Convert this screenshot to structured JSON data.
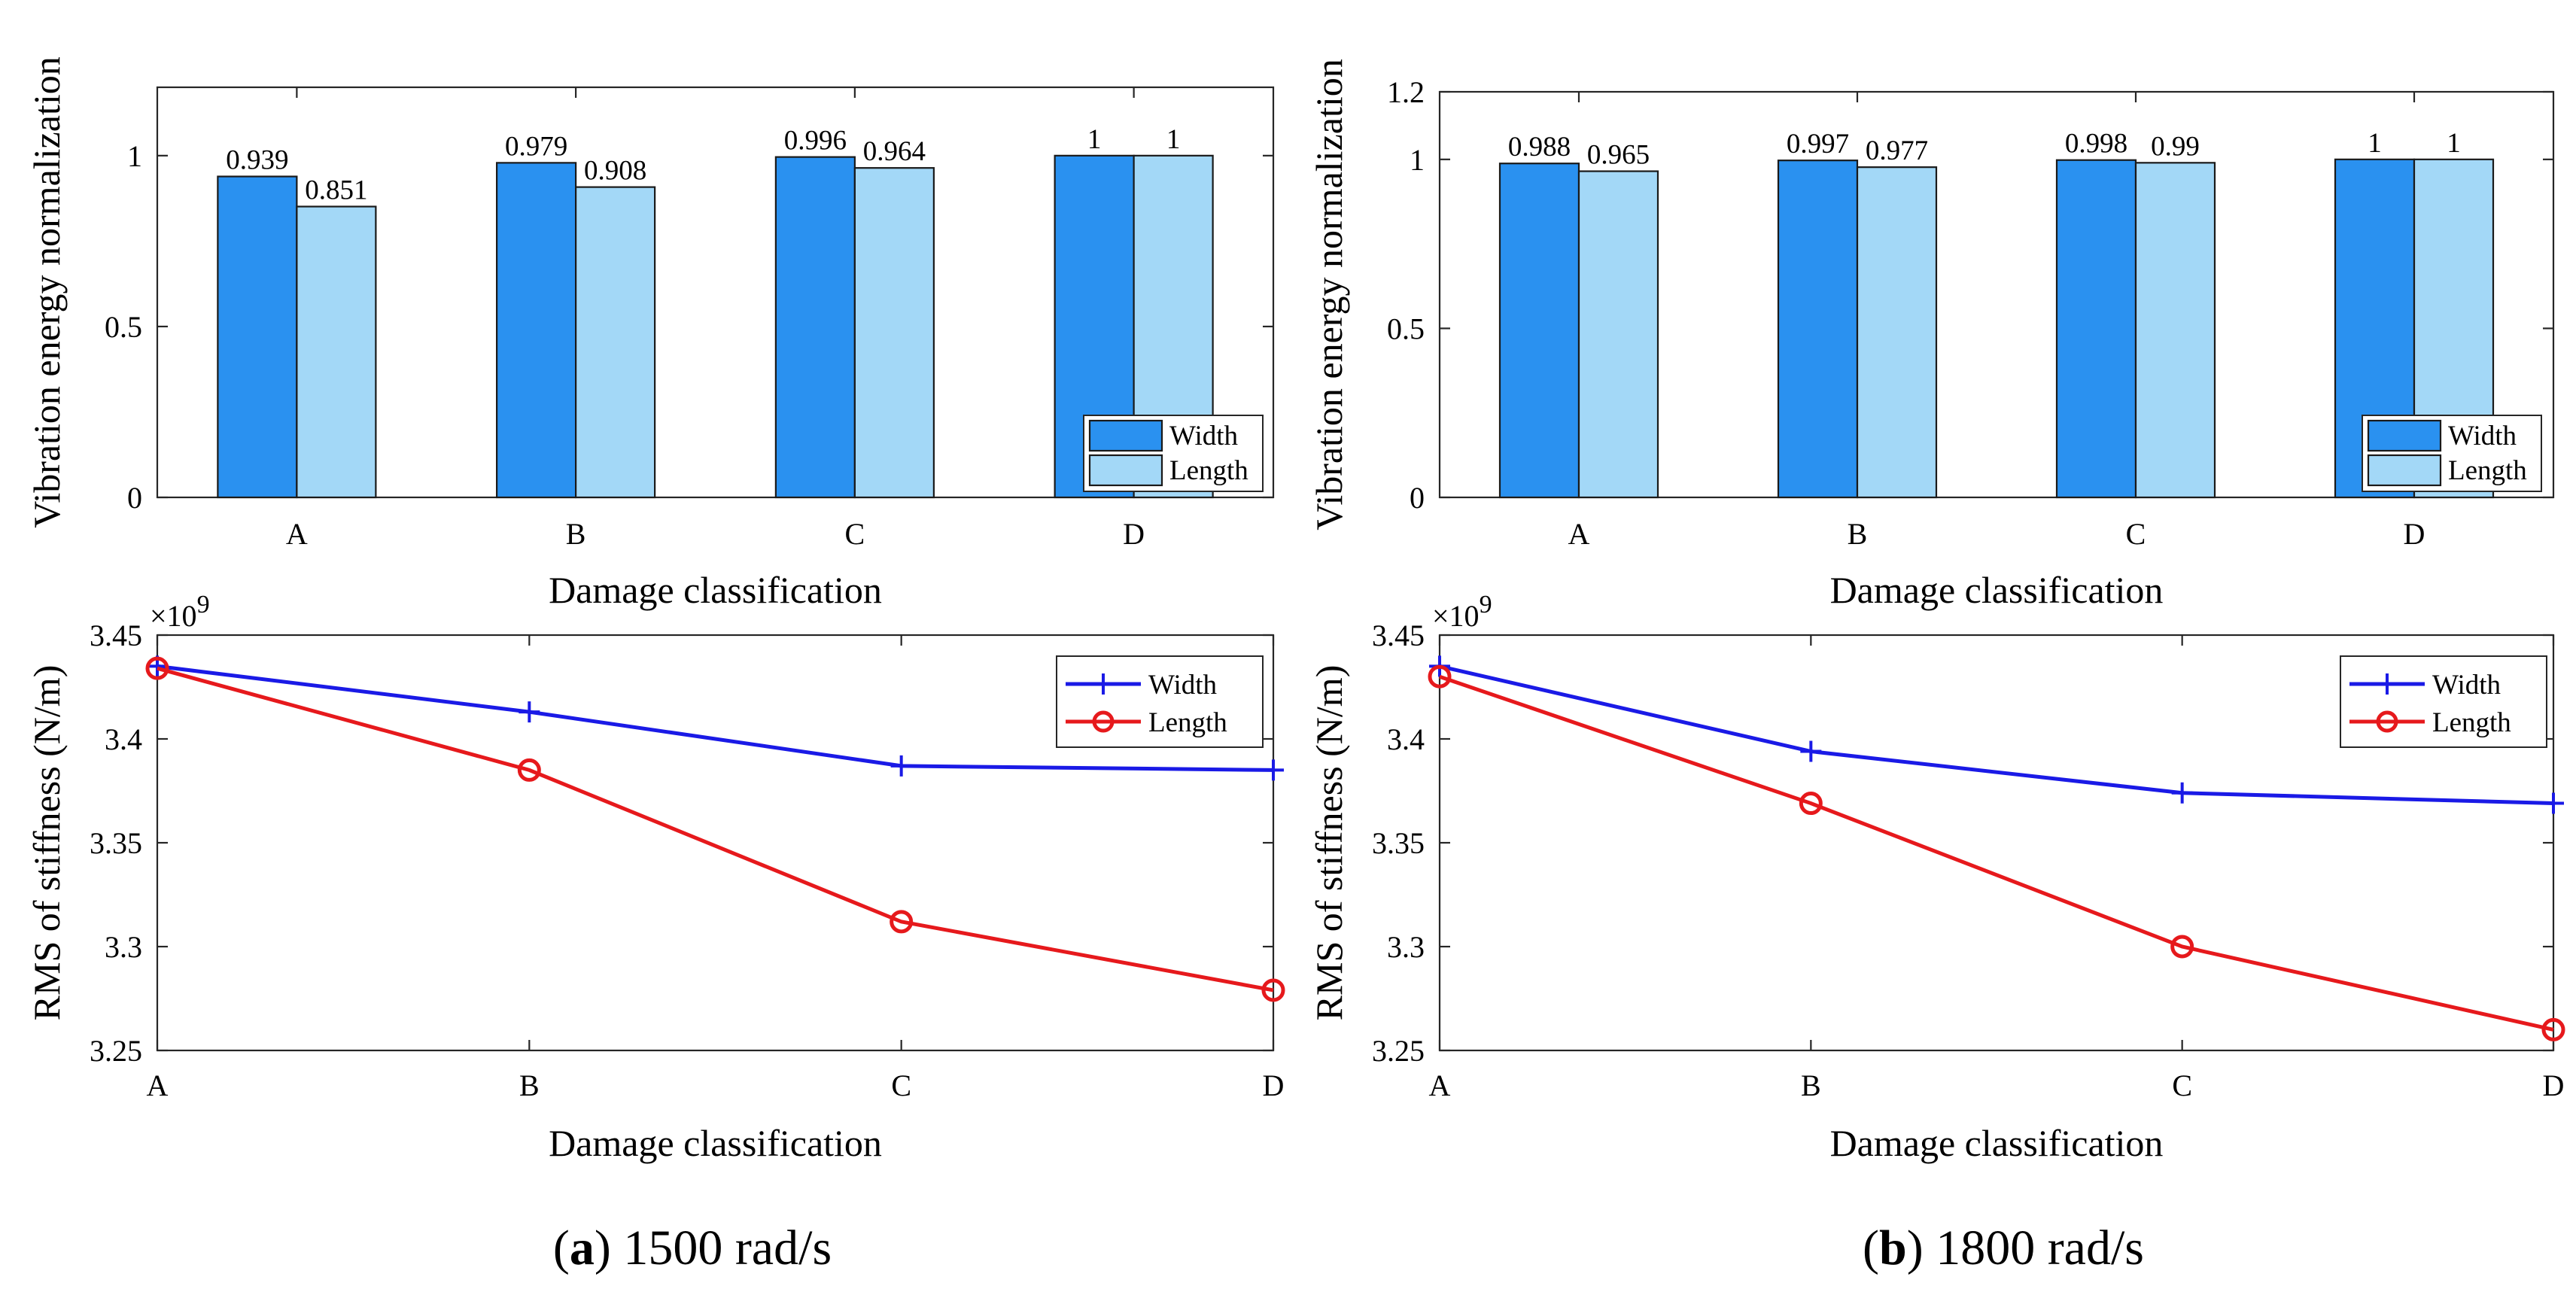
{
  "colors": {
    "width_bar": "#2a91f0",
    "length_bar": "#a3d8f7",
    "width_line": "#1a1ae6",
    "length_line": "#e6191c"
  },
  "captions": [
    {
      "letter": "a",
      "text": " 1500 rad/s"
    },
    {
      "letter": "b",
      "text": " 1800 rad/s"
    }
  ],
  "chart_data": [
    {
      "id": "bar-a",
      "type": "bar",
      "title": "",
      "categories": [
        "A",
        "B",
        "C",
        "D"
      ],
      "series": [
        {
          "name": "Width",
          "values": [
            0.939,
            0.979,
            0.996,
            1
          ],
          "labels": [
            "0.939",
            "0.979",
            "0.996",
            "1"
          ]
        },
        {
          "name": "Length",
          "values": [
            0.851,
            0.908,
            0.964,
            1
          ],
          "labels": [
            "0.851",
            "0.908",
            "0.964",
            "1"
          ]
        }
      ],
      "xlabel": "Damage classification",
      "ylabel": "Vibration energy normalization",
      "ylim": [
        0,
        1.2
      ],
      "yticks": [
        0,
        0.5,
        1
      ],
      "ytick_labels": [
        "0",
        "0.5",
        "1"
      ],
      "legend": [
        "Width",
        "Length"
      ],
      "legend_position": "bottom-right"
    },
    {
      "id": "bar-b",
      "type": "bar",
      "title": "",
      "categories": [
        "A",
        "B",
        "C",
        "D"
      ],
      "series": [
        {
          "name": "Width",
          "values": [
            0.988,
            0.997,
            0.998,
            1
          ],
          "labels": [
            "0.988",
            "0.997",
            "0.998",
            "1"
          ]
        },
        {
          "name": "Length",
          "values": [
            0.965,
            0.977,
            0.99,
            1
          ],
          "labels": [
            "0.965",
            "0.977",
            "0.99",
            "1"
          ]
        }
      ],
      "xlabel": "Damage classification",
      "ylabel": "Vibration energy normalization",
      "ylim": [
        0,
        1.2
      ],
      "yticks": [
        0,
        0.5,
        1,
        1.2
      ],
      "ytick_labels": [
        "0",
        "0.5",
        "1",
        "1.2"
      ],
      "legend": [
        "Width",
        "Length"
      ],
      "legend_position": "bottom-right"
    },
    {
      "id": "line-a",
      "type": "line",
      "title": "",
      "categories": [
        "A",
        "B",
        "C",
        "D"
      ],
      "series": [
        {
          "name": "Width",
          "values": [
            3.435,
            3.413,
            3.387,
            3.385
          ],
          "marker": "plus"
        },
        {
          "name": "Length",
          "values": [
            3.434,
            3.385,
            3.312,
            3.279
          ],
          "marker": "circle"
        }
      ],
      "xlabel": "Damage classification",
      "ylabel": "RMS of stiffness (N/m)",
      "ylim": [
        3.25,
        3.45
      ],
      "yticks": [
        3.25,
        3.3,
        3.35,
        3.4,
        3.45
      ],
      "ytick_labels": [
        "3.25",
        "3.3",
        "3.35",
        "3.4",
        "3.45"
      ],
      "exponent_base": "×10",
      "exponent_power": "9",
      "legend": [
        "Width",
        "Length"
      ],
      "legend_position": "top-right"
    },
    {
      "id": "line-b",
      "type": "line",
      "title": "",
      "categories": [
        "A",
        "B",
        "C",
        "D"
      ],
      "series": [
        {
          "name": "Width",
          "values": [
            3.435,
            3.394,
            3.374,
            3.369
          ],
          "marker": "plus"
        },
        {
          "name": "Length",
          "values": [
            3.43,
            3.369,
            3.3,
            3.26
          ],
          "marker": "circle"
        }
      ],
      "xlabel": "Damage classification",
      "ylabel": "RMS of stiffness (N/m)",
      "ylim": [
        3.25,
        3.45
      ],
      "yticks": [
        3.25,
        3.3,
        3.35,
        3.4,
        3.45
      ],
      "ytick_labels": [
        "3.25",
        "3.3",
        "3.35",
        "3.4",
        "3.45"
      ],
      "exponent_base": "×10",
      "exponent_power": "9",
      "legend": [
        "Width",
        "Length"
      ],
      "legend_position": "top-right"
    }
  ]
}
